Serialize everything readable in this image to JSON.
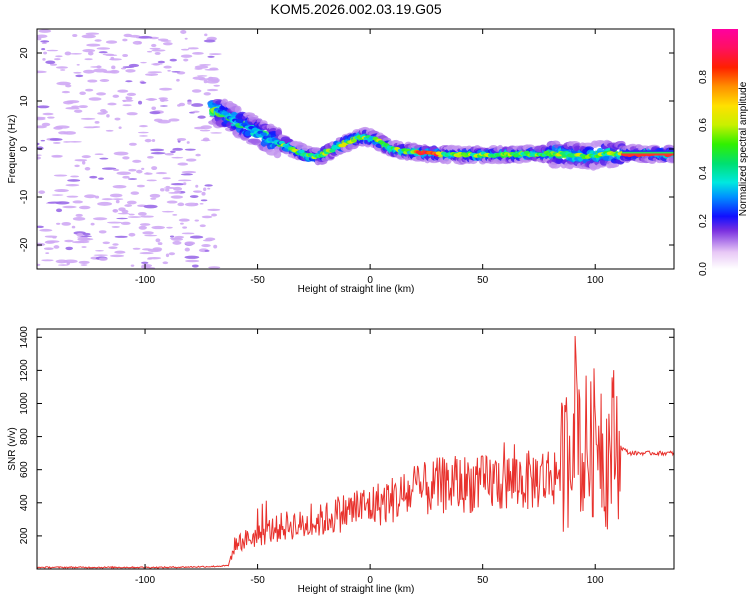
{
  "title": "KOM5.2026.002.03.19.G05",
  "colors": {
    "snr_line": "#e8322d",
    "spectrum_blob": "#cfa8f4",
    "spectrum_blob_dark": "#9a6ae8"
  },
  "chart_data": [
    {
      "type": "heatmap",
      "name": "spectrogram",
      "xlabel": "Height of straight line (km)",
      "ylabel": "Frequency (Hz)",
      "xlim": [
        -148,
        135
      ],
      "ylim": [
        -25,
        25
      ],
      "xticks": [
        -100,
        -50,
        0,
        50,
        100
      ],
      "yticks": [
        -20,
        -10,
        0,
        10,
        20
      ],
      "grid": false,
      "ridge": {
        "x": [
          -68,
          -62,
          -56,
          -50,
          -44,
          -38,
          -32,
          -26,
          -22,
          -18,
          -14,
          -10,
          -6,
          -2,
          2,
          6,
          10,
          16,
          22,
          30,
          40,
          50,
          60,
          70,
          80,
          85,
          90,
          95,
          100,
          105,
          110,
          120,
          135
        ],
        "y": [
          8,
          6.5,
          5,
          3.5,
          2,
          1,
          -0.5,
          -1.5,
          -1.5,
          -0.5,
          0.5,
          1.5,
          2.2,
          2.5,
          2,
          1,
          0,
          -0.5,
          -0.8,
          -1,
          -1.2,
          -1.2,
          -1.2,
          -1,
          -1,
          -1,
          -1.2,
          -1.5,
          -1.3,
          -1,
          -1,
          -1,
          -1
        ]
      },
      "colorbar": {
        "label": "Normalized spectral amplitude",
        "range": [
          0,
          1
        ],
        "ticks": [
          0.0,
          0.2,
          0.4,
          0.6,
          0.8
        ]
      }
    },
    {
      "type": "line",
      "name": "snr",
      "xlabel": "Height of straight line (km)",
      "ylabel": "SNR (v/v)",
      "xlim": [
        -148,
        135
      ],
      "ylim": [
        0,
        1450
      ],
      "xticks": [
        -100,
        -50,
        0,
        50,
        100
      ],
      "yticks": [
        200,
        400,
        600,
        800,
        1000,
        1200,
        1400
      ],
      "grid": false,
      "series": [
        {
          "x": [
            -148,
            -120,
            -90,
            -70,
            -63,
            -60,
            -55,
            -50,
            -45,
            -40,
            -35,
            -30,
            -25,
            -20,
            -15,
            -10,
            -5,
            0,
            5,
            10,
            15,
            20,
            25,
            30,
            35,
            40,
            45,
            50,
            55,
            60,
            65,
            70,
            75,
            80,
            85,
            88,
            90,
            92,
            94,
            96,
            98,
            100,
            102,
            104,
            106,
            108,
            110,
            115,
            120,
            135
          ],
          "y": [
            10,
            10,
            10,
            15,
            20,
            150,
            180,
            200,
            230,
            250,
            270,
            260,
            280,
            300,
            330,
            350,
            370,
            380,
            400,
            420,
            440,
            470,
            480,
            500,
            510,
            510,
            520,
            510,
            530,
            520,
            540,
            530,
            550,
            560,
            600,
            700,
            900,
            1100,
            600,
            750,
            700,
            800,
            900,
            650,
            700,
            800,
            750,
            700,
            700,
            700
          ]
        }
      ]
    }
  ]
}
